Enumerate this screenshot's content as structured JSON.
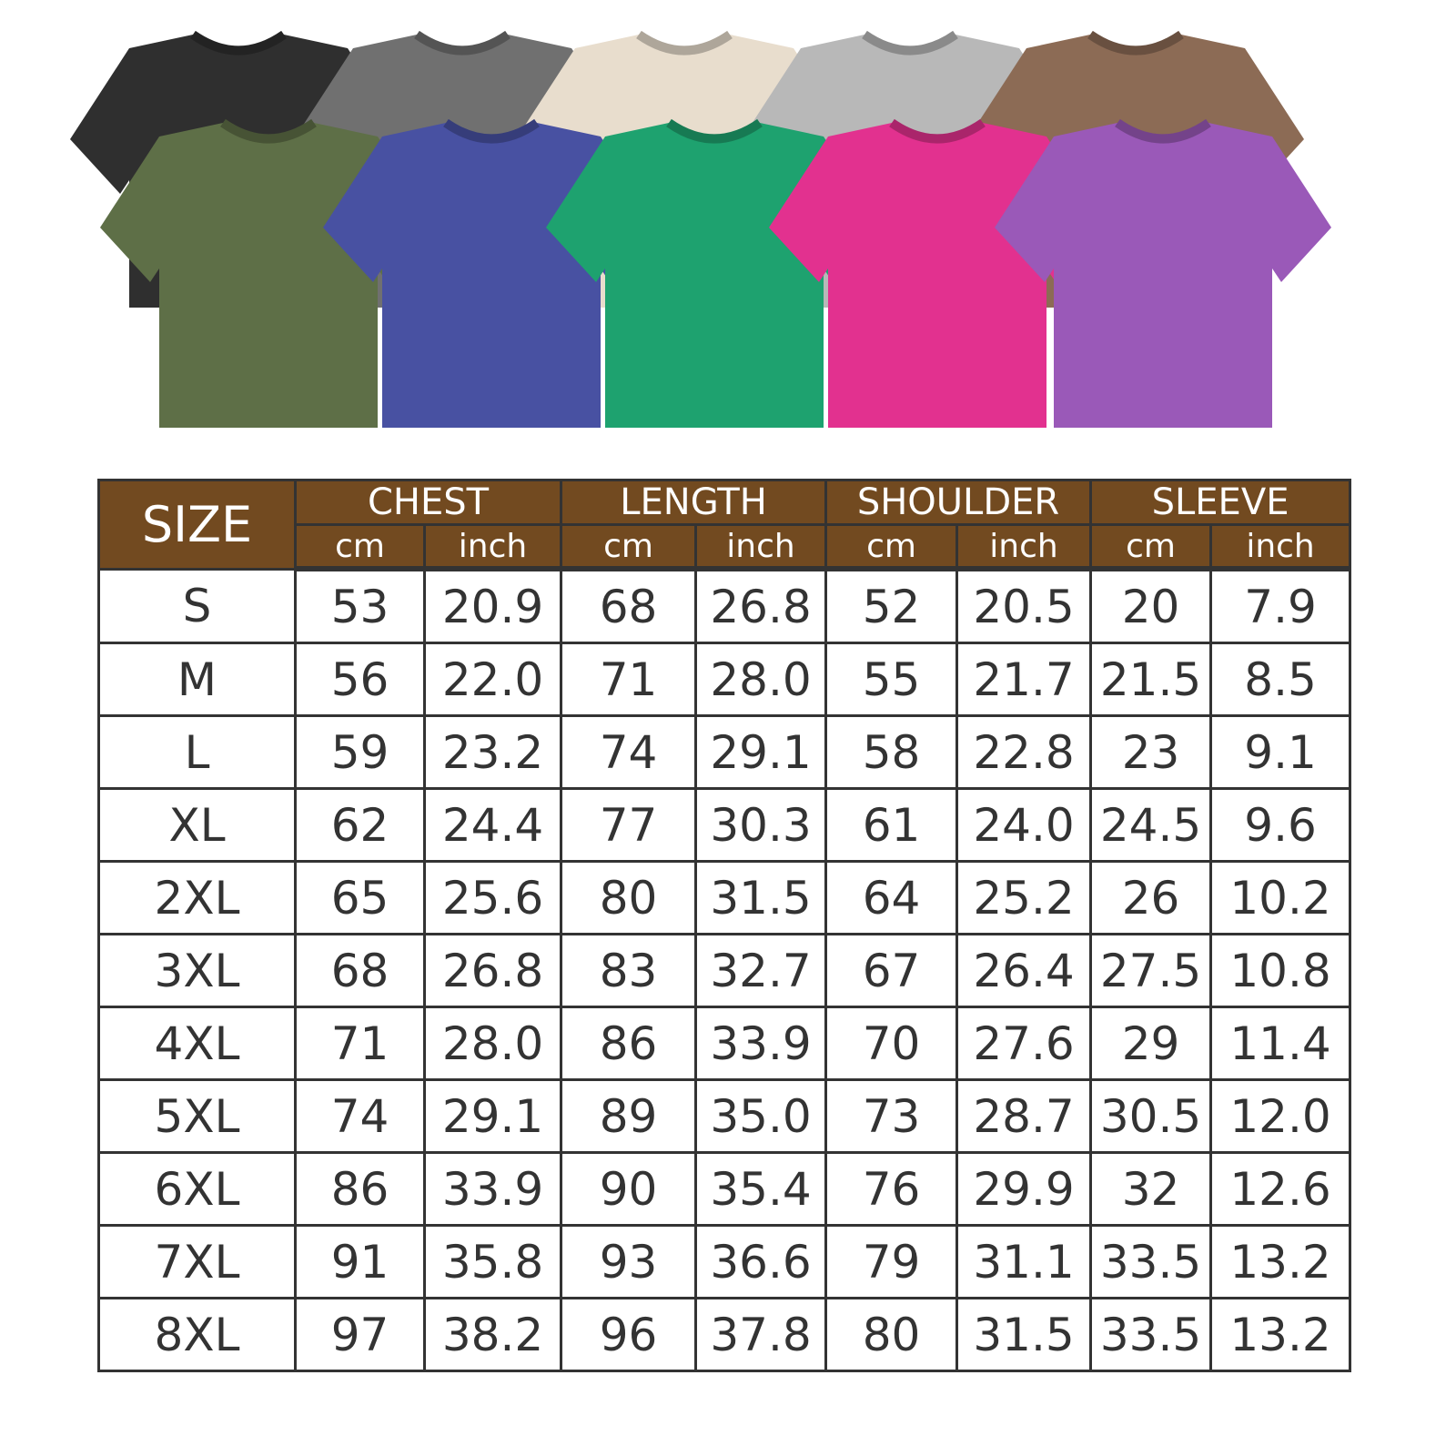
{
  "shirts": {
    "back_row": [
      {
        "color_hex": "#2f2f2f"
      },
      {
        "color_hex": "#707070"
      },
      {
        "color_hex": "#e8ddcd"
      },
      {
        "color_hex": "#b8b8b8"
      },
      {
        "color_hex": "#8c6b55"
      }
    ],
    "front_row": [
      {
        "color_hex": "#5e6f47"
      },
      {
        "color_hex": "#4851a2"
      },
      {
        "color_hex": "#1ea26f"
      },
      {
        "color_hex": "#e2318f"
      },
      {
        "color_hex": "#9a59b8"
      }
    ]
  },
  "size_chart": {
    "header_color": "#724a20",
    "size_label": "SIZE",
    "groups": [
      "CHEST",
      "LENGTH",
      "SHOULDER",
      "SLEEVE"
    ],
    "units": [
      "cm",
      "inch"
    ],
    "rows": [
      [
        "S",
        "53",
        "20.9",
        "68",
        "26.8",
        "52",
        "20.5",
        "20",
        "7.9"
      ],
      [
        "M",
        "56",
        "22.0",
        "71",
        "28.0",
        "55",
        "21.7",
        "21.5",
        "8.5"
      ],
      [
        "L",
        "59",
        "23.2",
        "74",
        "29.1",
        "58",
        "22.8",
        "23",
        "9.1"
      ],
      [
        "XL",
        "62",
        "24.4",
        "77",
        "30.3",
        "61",
        "24.0",
        "24.5",
        "9.6"
      ],
      [
        "2XL",
        "65",
        "25.6",
        "80",
        "31.5",
        "64",
        "25.2",
        "26",
        "10.2"
      ],
      [
        "3XL",
        "68",
        "26.8",
        "83",
        "32.7",
        "67",
        "26.4",
        "27.5",
        "10.8"
      ],
      [
        "4XL",
        "71",
        "28.0",
        "86",
        "33.9",
        "70",
        "27.6",
        "29",
        "11.4"
      ],
      [
        "5XL",
        "74",
        "29.1",
        "89",
        "35.0",
        "73",
        "28.7",
        "30.5",
        "12.0"
      ],
      [
        "6XL",
        "86",
        "33.9",
        "90",
        "35.4",
        "76",
        "29.9",
        "32",
        "12.6"
      ],
      [
        "7XL",
        "91",
        "35.8",
        "93",
        "36.6",
        "79",
        "31.1",
        "33.5",
        "13.2"
      ],
      [
        "8XL",
        "97",
        "38.2",
        "96",
        "37.8",
        "80",
        "31.5",
        "33.5",
        "13.2"
      ]
    ]
  }
}
